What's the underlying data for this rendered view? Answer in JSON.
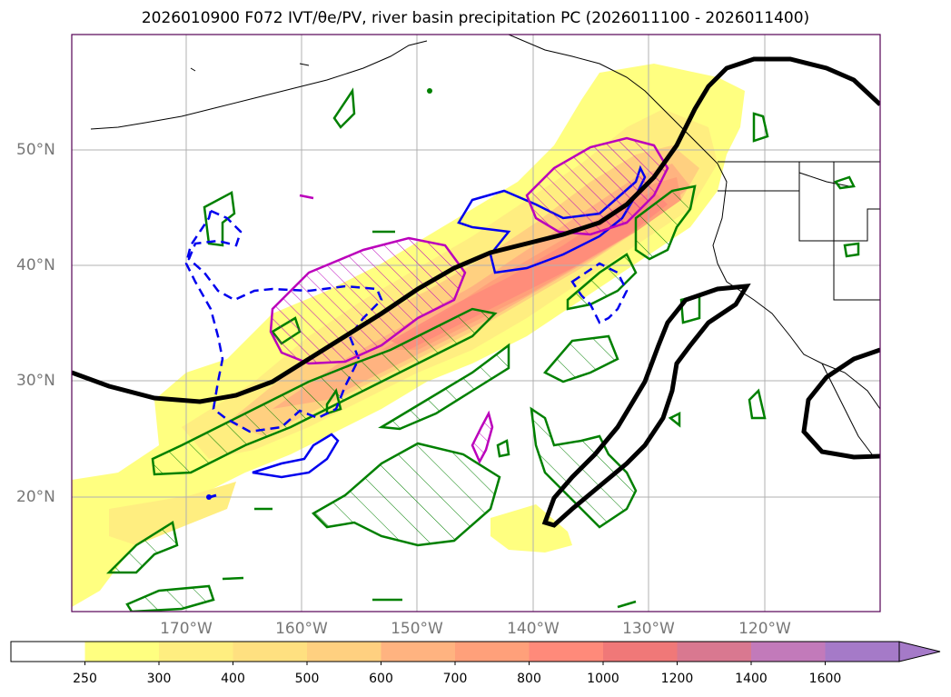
{
  "title": "2026010900 F072 IVT/θe/PV, river basin precipitation PC (2026011100 - 2026011400)",
  "lat_labels": [
    "50°N",
    "40°N",
    "30°N",
    "20°N"
  ],
  "lon_labels": [
    "170°W",
    "160°W",
    "150°W",
    "140°W",
    "130°W",
    "120°W"
  ],
  "colorbar": {
    "levels": [
      "250",
      "300",
      "400",
      "500",
      "600",
      "700",
      "800",
      "1000",
      "1200",
      "1400",
      "1600"
    ],
    "colors": [
      "#ffffff",
      "#ffff80",
      "#ffee80",
      "#ffe080",
      "#ffd080",
      "#ffb380",
      "#ffa07a",
      "#ff8a7a",
      "#f07878",
      "#d97890",
      "#c27aba",
      "#a57ac8"
    ],
    "extend": "max"
  },
  "legend_colors": {
    "theta_e": "#000000",
    "pv_positive": "#0000ff",
    "pv_box": "#bb00bb",
    "precip_pc": "#008000",
    "coast": "#000000"
  }
}
